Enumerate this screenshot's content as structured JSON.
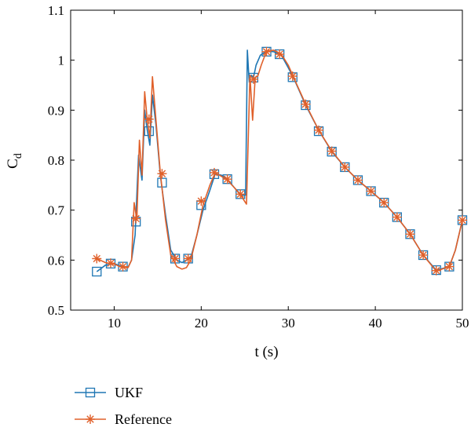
{
  "chart_data": {
    "type": "line",
    "xlabel": "t (s)",
    "ylabel_main": "C",
    "ylabel_sub": "d",
    "xlim": [
      5,
      50
    ],
    "ylim": [
      0.5,
      1.1
    ],
    "xticks": [
      "10",
      "20",
      "30",
      "40",
      "50"
    ],
    "yticks": [
      "0.5",
      "0.6",
      "0.7",
      "0.8",
      "0.9",
      "1",
      "1.1"
    ],
    "legend_position": "bottom-left",
    "series": [
      {
        "name": "UKF",
        "color": "#1f77b4",
        "marker": "square",
        "x": [
          8.0,
          9.0,
          10.0,
          10.8,
          11.6,
          12.0,
          12.4,
          12.8,
          13.2,
          13.5,
          13.8,
          14.1,
          14.4,
          14.8,
          15.3,
          15.9,
          16.5,
          17.2,
          17.8,
          18.3,
          18.8,
          19.5,
          20.2,
          21.0,
          21.6,
          22.3,
          23.0,
          23.8,
          24.6,
          25.1,
          25.3,
          25.5,
          25.75,
          26.0,
          26.3,
          26.8,
          27.5,
          28.3,
          29.2,
          30.0,
          30.6,
          32.0,
          33.5,
          35.0,
          36.5,
          38.0,
          39.5,
          41.0,
          42.5,
          44.0,
          45.5,
          47.0,
          48.5,
          49.2,
          50.0
        ],
        "y": [
          0.577,
          0.59,
          0.593,
          0.588,
          0.586,
          0.6,
          0.65,
          0.81,
          0.76,
          0.9,
          0.86,
          0.83,
          0.93,
          0.87,
          0.77,
          0.69,
          0.62,
          0.6,
          0.595,
          0.6,
          0.605,
          0.65,
          0.7,
          0.74,
          0.772,
          0.77,
          0.762,
          0.745,
          0.73,
          0.73,
          1.02,
          0.96,
          0.97,
          0.965,
          0.99,
          1.01,
          1.018,
          1.017,
          1.01,
          0.985,
          0.965,
          0.91,
          0.86,
          0.817,
          0.786,
          0.76,
          0.738,
          0.715,
          0.686,
          0.652,
          0.61,
          0.58,
          0.587,
          0.62,
          0.68
        ],
        "marker_x": [
          8.0,
          9.6,
          11.0,
          12.5,
          14.0,
          15.5,
          17.0,
          18.5,
          20.0,
          21.5,
          23.0,
          24.5,
          26.0,
          27.5,
          29.0,
          30.5,
          32.0,
          33.5,
          35.0,
          36.5,
          38.0,
          39.5,
          41.0,
          42.5,
          44.0,
          45.5,
          47.0,
          48.5,
          50.0
        ],
        "marker_y": [
          0.577,
          0.593,
          0.587,
          0.677,
          0.858,
          0.755,
          0.603,
          0.603,
          0.71,
          0.772,
          0.762,
          0.732,
          0.965,
          1.017,
          1.012,
          0.966,
          0.91,
          0.858,
          0.817,
          0.786,
          0.76,
          0.738,
          0.715,
          0.686,
          0.652,
          0.61,
          0.58,
          0.587,
          0.68
        ]
      },
      {
        "name": "Reference",
        "color": "#e0602a",
        "marker": "asterisk",
        "x": [
          8.0,
          9.0,
          10.0,
          10.8,
          11.6,
          12.0,
          12.3,
          12.6,
          12.9,
          13.2,
          13.5,
          13.8,
          14.1,
          14.4,
          14.8,
          15.3,
          15.9,
          16.5,
          17.2,
          17.8,
          18.3,
          18.8,
          19.5,
          20.2,
          21.0,
          21.6,
          22.3,
          23.0,
          23.8,
          24.6,
          25.2,
          25.6,
          25.9,
          26.2,
          26.5,
          26.9,
          27.5,
          28.3,
          29.2,
          30.0,
          30.6,
          32.0,
          33.5,
          35.0,
          36.5,
          38.0,
          39.5,
          41.0,
          42.5,
          44.0,
          45.5,
          47.0,
          48.5,
          49.2,
          50.0
        ],
        "y": [
          0.603,
          0.595,
          0.592,
          0.586,
          0.585,
          0.6,
          0.715,
          0.68,
          0.84,
          0.77,
          0.937,
          0.88,
          0.845,
          0.967,
          0.88,
          0.775,
          0.68,
          0.61,
          0.587,
          0.582,
          0.585,
          0.6,
          0.65,
          0.71,
          0.75,
          0.775,
          0.768,
          0.76,
          0.745,
          0.728,
          0.712,
          0.97,
          0.88,
          0.965,
          0.968,
          0.99,
          1.018,
          1.02,
          1.012,
          0.99,
          0.966,
          0.912,
          0.86,
          0.818,
          0.786,
          0.76,
          0.738,
          0.715,
          0.686,
          0.652,
          0.61,
          0.578,
          0.587,
          0.62,
          0.68
        ],
        "marker_x": [
          8.0,
          9.6,
          11.0,
          12.5,
          14.0,
          15.5,
          17.0,
          18.5,
          20.0,
          21.5,
          23.0,
          24.5,
          26.0,
          27.5,
          29.0,
          30.5,
          32.0,
          33.5,
          35.0,
          36.5,
          38.0,
          39.5,
          41.0,
          42.5,
          44.0,
          45.5,
          47.0,
          48.5,
          50.0
        ],
        "marker_y": [
          0.603,
          0.594,
          0.587,
          0.683,
          0.882,
          0.773,
          0.603,
          0.603,
          0.718,
          0.775,
          0.762,
          0.732,
          0.962,
          1.017,
          1.012,
          0.968,
          0.912,
          0.86,
          0.818,
          0.786,
          0.76,
          0.738,
          0.715,
          0.686,
          0.652,
          0.61,
          0.579,
          0.587,
          0.68
        ]
      }
    ]
  }
}
